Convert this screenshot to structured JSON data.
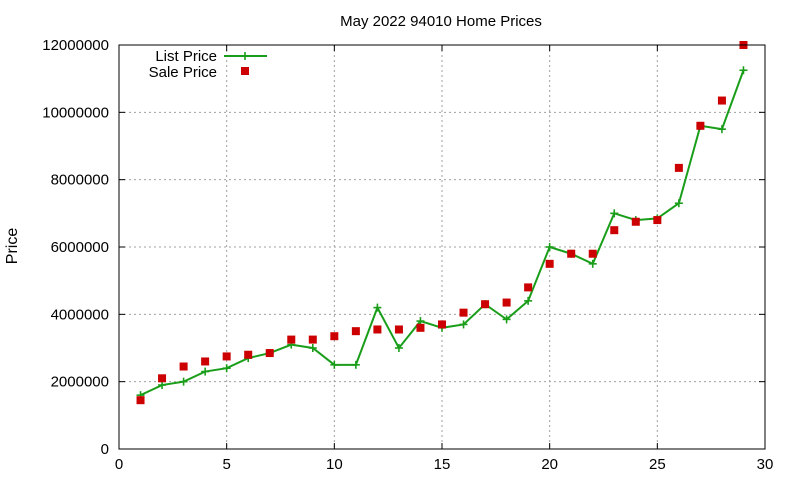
{
  "chart_data": {
    "type": "line",
    "title": "May 2022 94010 Home Prices",
    "xlabel": "",
    "ylabel": "Price",
    "xlim": [
      0,
      30
    ],
    "ylim": [
      0,
      12000000
    ],
    "xticks": [
      0,
      5,
      10,
      15,
      20,
      25,
      30
    ],
    "yticks": [
      0,
      2000000,
      4000000,
      6000000,
      8000000,
      10000000,
      12000000
    ],
    "grid": true,
    "legend_position": "top-left",
    "series": [
      {
        "name": "List Price",
        "style": "line+cross",
        "color": "#1a9e1a",
        "x": [
          1,
          2,
          3,
          4,
          5,
          6,
          7,
          8,
          9,
          10,
          11,
          12,
          13,
          14,
          15,
          16,
          17,
          18,
          19,
          20,
          21,
          22,
          23,
          24,
          25,
          26,
          27,
          28,
          29
        ],
        "values": [
          1600000,
          1900000,
          2000000,
          2300000,
          2400000,
          2700000,
          2850000,
          3100000,
          3000000,
          2500000,
          2500000,
          4200000,
          3000000,
          3800000,
          3600000,
          3700000,
          4300000,
          3850000,
          4400000,
          6000000,
          5800000,
          5500000,
          7000000,
          6800000,
          6850000,
          7300000,
          9600000,
          9500000,
          11250000
        ]
      },
      {
        "name": "Sale Price",
        "style": "square",
        "color": "#cc0000",
        "x": [
          1,
          2,
          3,
          4,
          5,
          6,
          7,
          8,
          9,
          10,
          11,
          12,
          13,
          14,
          15,
          16,
          17,
          18,
          19,
          20,
          21,
          22,
          23,
          24,
          25,
          26,
          27,
          28,
          29
        ],
        "values": [
          1450000,
          2100000,
          2450000,
          2600000,
          2750000,
          2800000,
          2850000,
          3250000,
          3250000,
          3350000,
          3500000,
          3550000,
          3550000,
          3600000,
          3700000,
          4050000,
          4300000,
          4350000,
          4800000,
          5500000,
          5800000,
          5800000,
          6500000,
          6750000,
          6800000,
          8350000,
          9600000,
          10350000,
          12000000
        ]
      }
    ]
  }
}
